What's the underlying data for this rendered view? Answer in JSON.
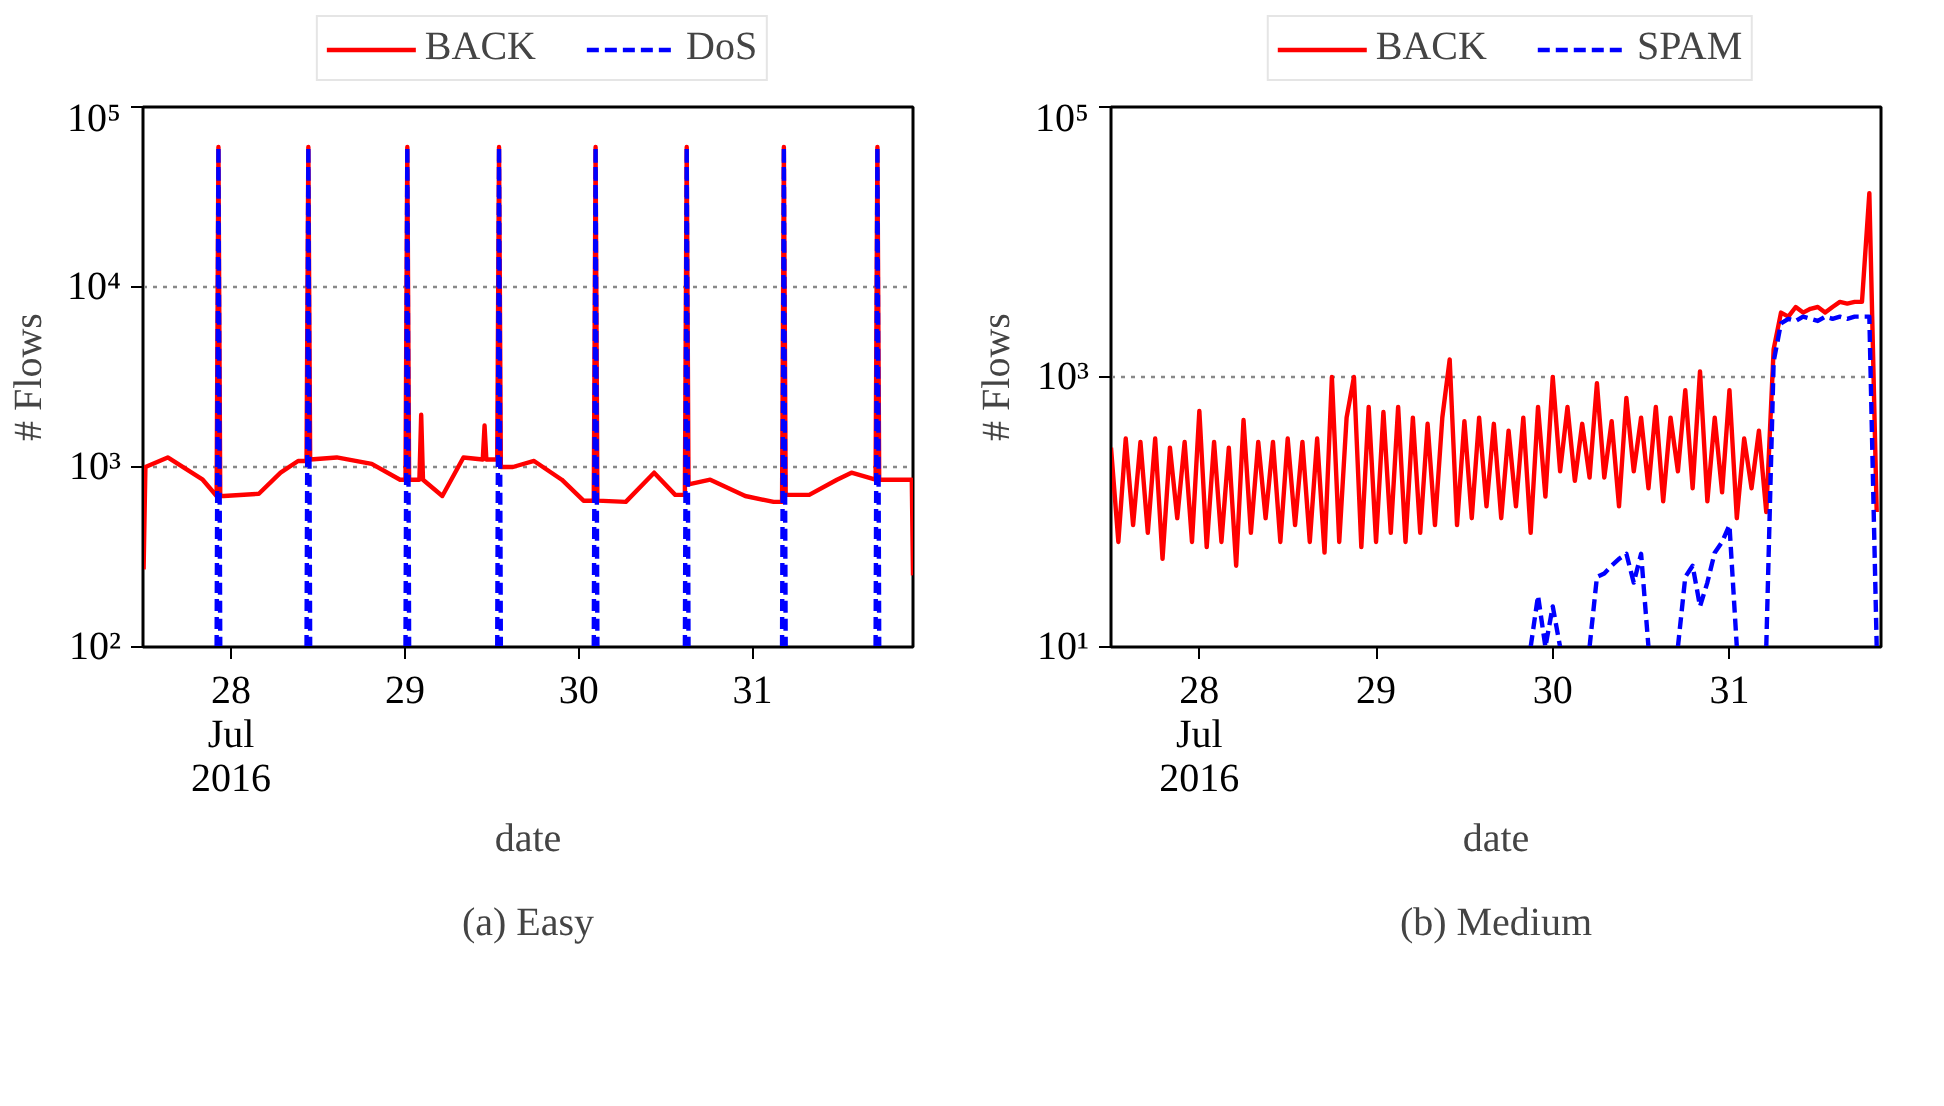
{
  "chart_data": [
    {
      "type": "line",
      "xlabel": "date",
      "ylabel": "# Flows",
      "log": "y",
      "grid": "y",
      "legend": "top",
      "xlim": [
        "2016-07-27T11:50",
        "2016-07-31T22:10"
      ],
      "ylim": [
        100,
        100000
      ],
      "xticks": [
        {
          "value": "2016-07-28",
          "label": "28\nJul\n2016"
        },
        {
          "value": "2016-07-29",
          "label": "29"
        },
        {
          "value": "2016-07-30",
          "label": "30"
        },
        {
          "value": "2016-07-31",
          "label": "31"
        }
      ],
      "yticks": [
        {
          "value": 100,
          "label": "10²"
        },
        {
          "value": 1000,
          "label": "10³"
        },
        {
          "value": 10000,
          "label": "10⁴"
        },
        {
          "value": 100000,
          "label": "10⁵"
        }
      ],
      "annotations": [
        "(a) Easy"
      ],
      "series": [
        {
          "name": "BACK",
          "color": "#ff0000",
          "line_style": "solid",
          "x": [
            "2016-07-27T11:55",
            "2016-07-27T12:10",
            "2016-07-27T15:15",
            "2016-07-27T20:05",
            "2016-07-27T22:00",
            "2016-07-27T22:15",
            "2016-07-27T22:30",
            "2016-07-27T23:00",
            "2016-07-28T03:50",
            "2016-07-28T06:50",
            "2016-07-28T09:15",
            "2016-07-28T10:25",
            "2016-07-28T10:40",
            "2016-07-28T10:55",
            "2016-07-28T14:35",
            "2016-07-28T19:25",
            "2016-07-28T23:20",
            "2016-07-29T00:05",
            "2016-07-29T00:20",
            "2016-07-29T00:35",
            "2016-07-29T02:00",
            "2016-07-29T02:15",
            "2016-07-29T02:30",
            "2016-07-29T05:10",
            "2016-07-29T08:05",
            "2016-07-29T10:45",
            "2016-07-29T11:00",
            "2016-07-29T11:15",
            "2016-07-29T12:45",
            "2016-07-29T13:00",
            "2016-07-29T13:15",
            "2016-07-29T14:55",
            "2016-07-29T17:50",
            "2016-07-29T21:40",
            "2016-07-30T00:40",
            "2016-07-30T02:05",
            "2016-07-30T02:20",
            "2016-07-30T02:35",
            "2016-07-30T06:30",
            "2016-07-30T10:25",
            "2016-07-30T13:20",
            "2016-07-30T14:40",
            "2016-07-30T14:55",
            "2016-07-30T15:10",
            "2016-07-30T18:10",
            "2016-07-30T23:00",
            "2016-07-31T02:55",
            "2016-07-31T04:05",
            "2016-07-31T04:20",
            "2016-07-31T04:35",
            "2016-07-31T07:50",
            "2016-07-31T11:40",
            "2016-07-31T13:40",
            "2016-07-31T17:00",
            "2016-07-31T17:15",
            "2016-07-31T17:30",
            "2016-07-31T21:25",
            "2016-07-31T22:00",
            "2016-07-31T22:10"
          ],
          "values": [
            270,
            1000,
            1130,
            850,
            690,
            60000,
            690,
            690,
            710,
            930,
            1080,
            1080,
            60000,
            1100,
            1130,
            1040,
            850,
            850,
            60000,
            850,
            850,
            1950,
            850,
            690,
            1130,
            1100,
            1700,
            1100,
            1100,
            60000,
            1000,
            1000,
            1080,
            850,
            650,
            650,
            60000,
            650,
            640,
            930,
            700,
            700,
            60000,
            800,
            850,
            690,
            640,
            640,
            60000,
            700,
            700,
            850,
            930,
            850,
            60000,
            850,
            850,
            850,
            250
          ]
        },
        {
          "name": "DoS",
          "color": "#0000ff",
          "line_style": "dashed",
          "x": [
            "2016-07-27T22:00",
            "2016-07-27T22:15",
            "2016-07-27T22:30",
            "2016-07-28T03:00",
            "2016-07-28T10:25",
            "2016-07-28T10:40",
            "2016-07-28T10:55",
            "2016-07-28T18:00",
            "2016-07-29T00:05",
            "2016-07-29T00:20",
            "2016-07-29T00:35",
            "2016-07-29T06:00",
            "2016-07-29T12:45",
            "2016-07-29T13:00",
            "2016-07-29T13:15",
            "2016-07-29T20:00",
            "2016-07-30T02:05",
            "2016-07-30T02:20",
            "2016-07-30T02:35",
            "2016-07-30T08:00",
            "2016-07-30T14:40",
            "2016-07-30T14:55",
            "2016-07-30T15:10",
            "2016-07-30T22:00",
            "2016-07-31T04:05",
            "2016-07-31T04:20",
            "2016-07-31T04:35",
            "2016-07-31T10:00",
            "2016-07-31T17:00",
            "2016-07-31T17:15",
            "2016-07-31T17:30"
          ],
          "values": [
            100,
            60000,
            100,
            null,
            100,
            60000,
            100,
            null,
            100,
            60000,
            100,
            null,
            100,
            60000,
            100,
            null,
            100,
            60000,
            100,
            null,
            100,
            60000,
            100,
            null,
            100,
            60000,
            100,
            null,
            100,
            60000,
            100
          ]
        }
      ]
    },
    {
      "type": "line",
      "xlabel": "date",
      "ylabel": "# Flows",
      "log": "y",
      "grid": "y",
      "legend": "top",
      "xlim": [
        "2016-07-27T12:00",
        "2016-07-31T20:35"
      ],
      "ylim": [
        10,
        100000
      ],
      "xticks": [
        {
          "value": "2016-07-28",
          "label": "28\nJul\n2016"
        },
        {
          "value": "2016-07-29",
          "label": "29"
        },
        {
          "value": "2016-07-30",
          "label": "30"
        },
        {
          "value": "2016-07-31",
          "label": "31"
        }
      ],
      "yticks": [
        {
          "value": 10,
          "label": "10¹"
        },
        {
          "value": 1000,
          "label": "10³"
        },
        {
          "value": 100000,
          "label": "10⁵"
        }
      ],
      "annotations": [
        "(b) Medium"
      ],
      "x": [
        "2016-07-27T12:00",
        "2016-07-27T13:00",
        "2016-07-27T14:00",
        "2016-07-27T15:00",
        "2016-07-27T16:00",
        "2016-07-27T17:00",
        "2016-07-27T18:00",
        "2016-07-27T19:00",
        "2016-07-27T20:00",
        "2016-07-27T21:00",
        "2016-07-27T22:00",
        "2016-07-27T23:00",
        "2016-07-28T00:00",
        "2016-07-28T01:00",
        "2016-07-28T02:00",
        "2016-07-28T03:00",
        "2016-07-28T04:00",
        "2016-07-28T05:00",
        "2016-07-28T06:00",
        "2016-07-28T07:00",
        "2016-07-28T08:00",
        "2016-07-28T09:00",
        "2016-07-28T10:00",
        "2016-07-28T11:00",
        "2016-07-28T12:00",
        "2016-07-28T13:00",
        "2016-07-28T14:00",
        "2016-07-28T15:00",
        "2016-07-28T16:00",
        "2016-07-28T17:00",
        "2016-07-28T18:00",
        "2016-07-28T19:00",
        "2016-07-28T20:00",
        "2016-07-28T21:00",
        "2016-07-28T22:00",
        "2016-07-28T23:00",
        "2016-07-29T00:00",
        "2016-07-29T01:00",
        "2016-07-29T02:00",
        "2016-07-29T03:00",
        "2016-07-29T04:00",
        "2016-07-29T05:00",
        "2016-07-29T06:00",
        "2016-07-29T07:00",
        "2016-07-29T08:00",
        "2016-07-29T09:00",
        "2016-07-29T10:00",
        "2016-07-29T11:00",
        "2016-07-29T12:00",
        "2016-07-29T13:00",
        "2016-07-29T14:00",
        "2016-07-29T15:00",
        "2016-07-29T16:00",
        "2016-07-29T17:00",
        "2016-07-29T18:00",
        "2016-07-29T19:00",
        "2016-07-29T20:00",
        "2016-07-29T21:00",
        "2016-07-29T22:00",
        "2016-07-29T23:00",
        "2016-07-30T00:00",
        "2016-07-30T01:00",
        "2016-07-30T02:00",
        "2016-07-30T03:00",
        "2016-07-30T04:00",
        "2016-07-30T05:00",
        "2016-07-30T06:00",
        "2016-07-30T07:00",
        "2016-07-30T08:00",
        "2016-07-30T09:00",
        "2016-07-30T10:00",
        "2016-07-30T11:00",
        "2016-07-30T12:00",
        "2016-07-30T13:00",
        "2016-07-30T14:00",
        "2016-07-30T15:00",
        "2016-07-30T16:00",
        "2016-07-30T17:00",
        "2016-07-30T18:00",
        "2016-07-30T19:00",
        "2016-07-30T20:00",
        "2016-07-30T21:00",
        "2016-07-30T22:00",
        "2016-07-30T23:00",
        "2016-07-31T00:00",
        "2016-07-31T01:00",
        "2016-07-31T02:00",
        "2016-07-31T03:00",
        "2016-07-31T04:00",
        "2016-07-31T05:00",
        "2016-07-31T06:00",
        "2016-07-31T07:00",
        "2016-07-31T08:00",
        "2016-07-31T09:00",
        "2016-07-31T10:00",
        "2016-07-31T11:00",
        "2016-07-31T12:00",
        "2016-07-31T13:00",
        "2016-07-31T14:00",
        "2016-07-31T15:00",
        "2016-07-31T16:00",
        "2016-07-31T17:00",
        "2016-07-31T18:00",
        "2016-07-31T19:00",
        "2016-07-31T20:00"
      ],
      "series": [
        {
          "name": "BACK",
          "color": "#ff0000",
          "line_style": "solid",
          "values": [
            300,
            60,
            350,
            80,
            330,
            70,
            350,
            45,
            300,
            90,
            330,
            60,
            560,
            55,
            330,
            60,
            300,
            40,
            480,
            70,
            330,
            90,
            330,
            60,
            350,
            80,
            330,
            60,
            350,
            50,
            1000,
            60,
            500,
            1000,
            55,
            600,
            60,
            550,
            70,
            600,
            60,
            500,
            70,
            450,
            80,
            500,
            1350,
            80,
            470,
            90,
            500,
            110,
            450,
            90,
            400,
            110,
            500,
            70,
            600,
            130,
            1000,
            200,
            600,
            170,
            450,
            180,
            900,
            180,
            470,
            110,
            700,
            200,
            500,
            150,
            600,
            120,
            500,
            200,
            800,
            150,
            1100,
            120,
            500,
            140,
            800,
            90,
            350,
            150,
            400,
            100,
            1600,
            3000,
            2800,
            3300,
            3000,
            3200,
            3300,
            3000,
            3300,
            3600,
            3500,
            3600,
            3600,
            23000,
            100
          ]
        },
        {
          "name": "SPAM",
          "color": "#0000ff",
          "line_style": "dashed",
          "values": [
            null,
            null,
            null,
            null,
            null,
            null,
            null,
            null,
            null,
            null,
            null,
            null,
            null,
            null,
            null,
            null,
            null,
            null,
            null,
            null,
            null,
            null,
            null,
            null,
            null,
            null,
            null,
            null,
            null,
            null,
            null,
            null,
            null,
            null,
            null,
            null,
            null,
            null,
            null,
            null,
            null,
            null,
            null,
            null,
            null,
            null,
            null,
            null,
            null,
            null,
            null,
            null,
            null,
            null,
            null,
            null,
            null,
            10,
            24,
            10,
            20,
            10,
            null,
            null,
            null,
            10,
            33,
            35,
            40,
            45,
            49,
            30,
            49,
            10,
            null,
            null,
            null,
            10,
            33,
            40,
            20,
            30,
            50,
            60,
            80,
            10,
            null,
            null,
            null,
            10,
            1300,
            2500,
            2700,
            2600,
            2800,
            2700,
            2600,
            2800,
            2700,
            2800,
            2700,
            2800,
            2800,
            2800,
            10
          ]
        }
      ]
    }
  ]
}
